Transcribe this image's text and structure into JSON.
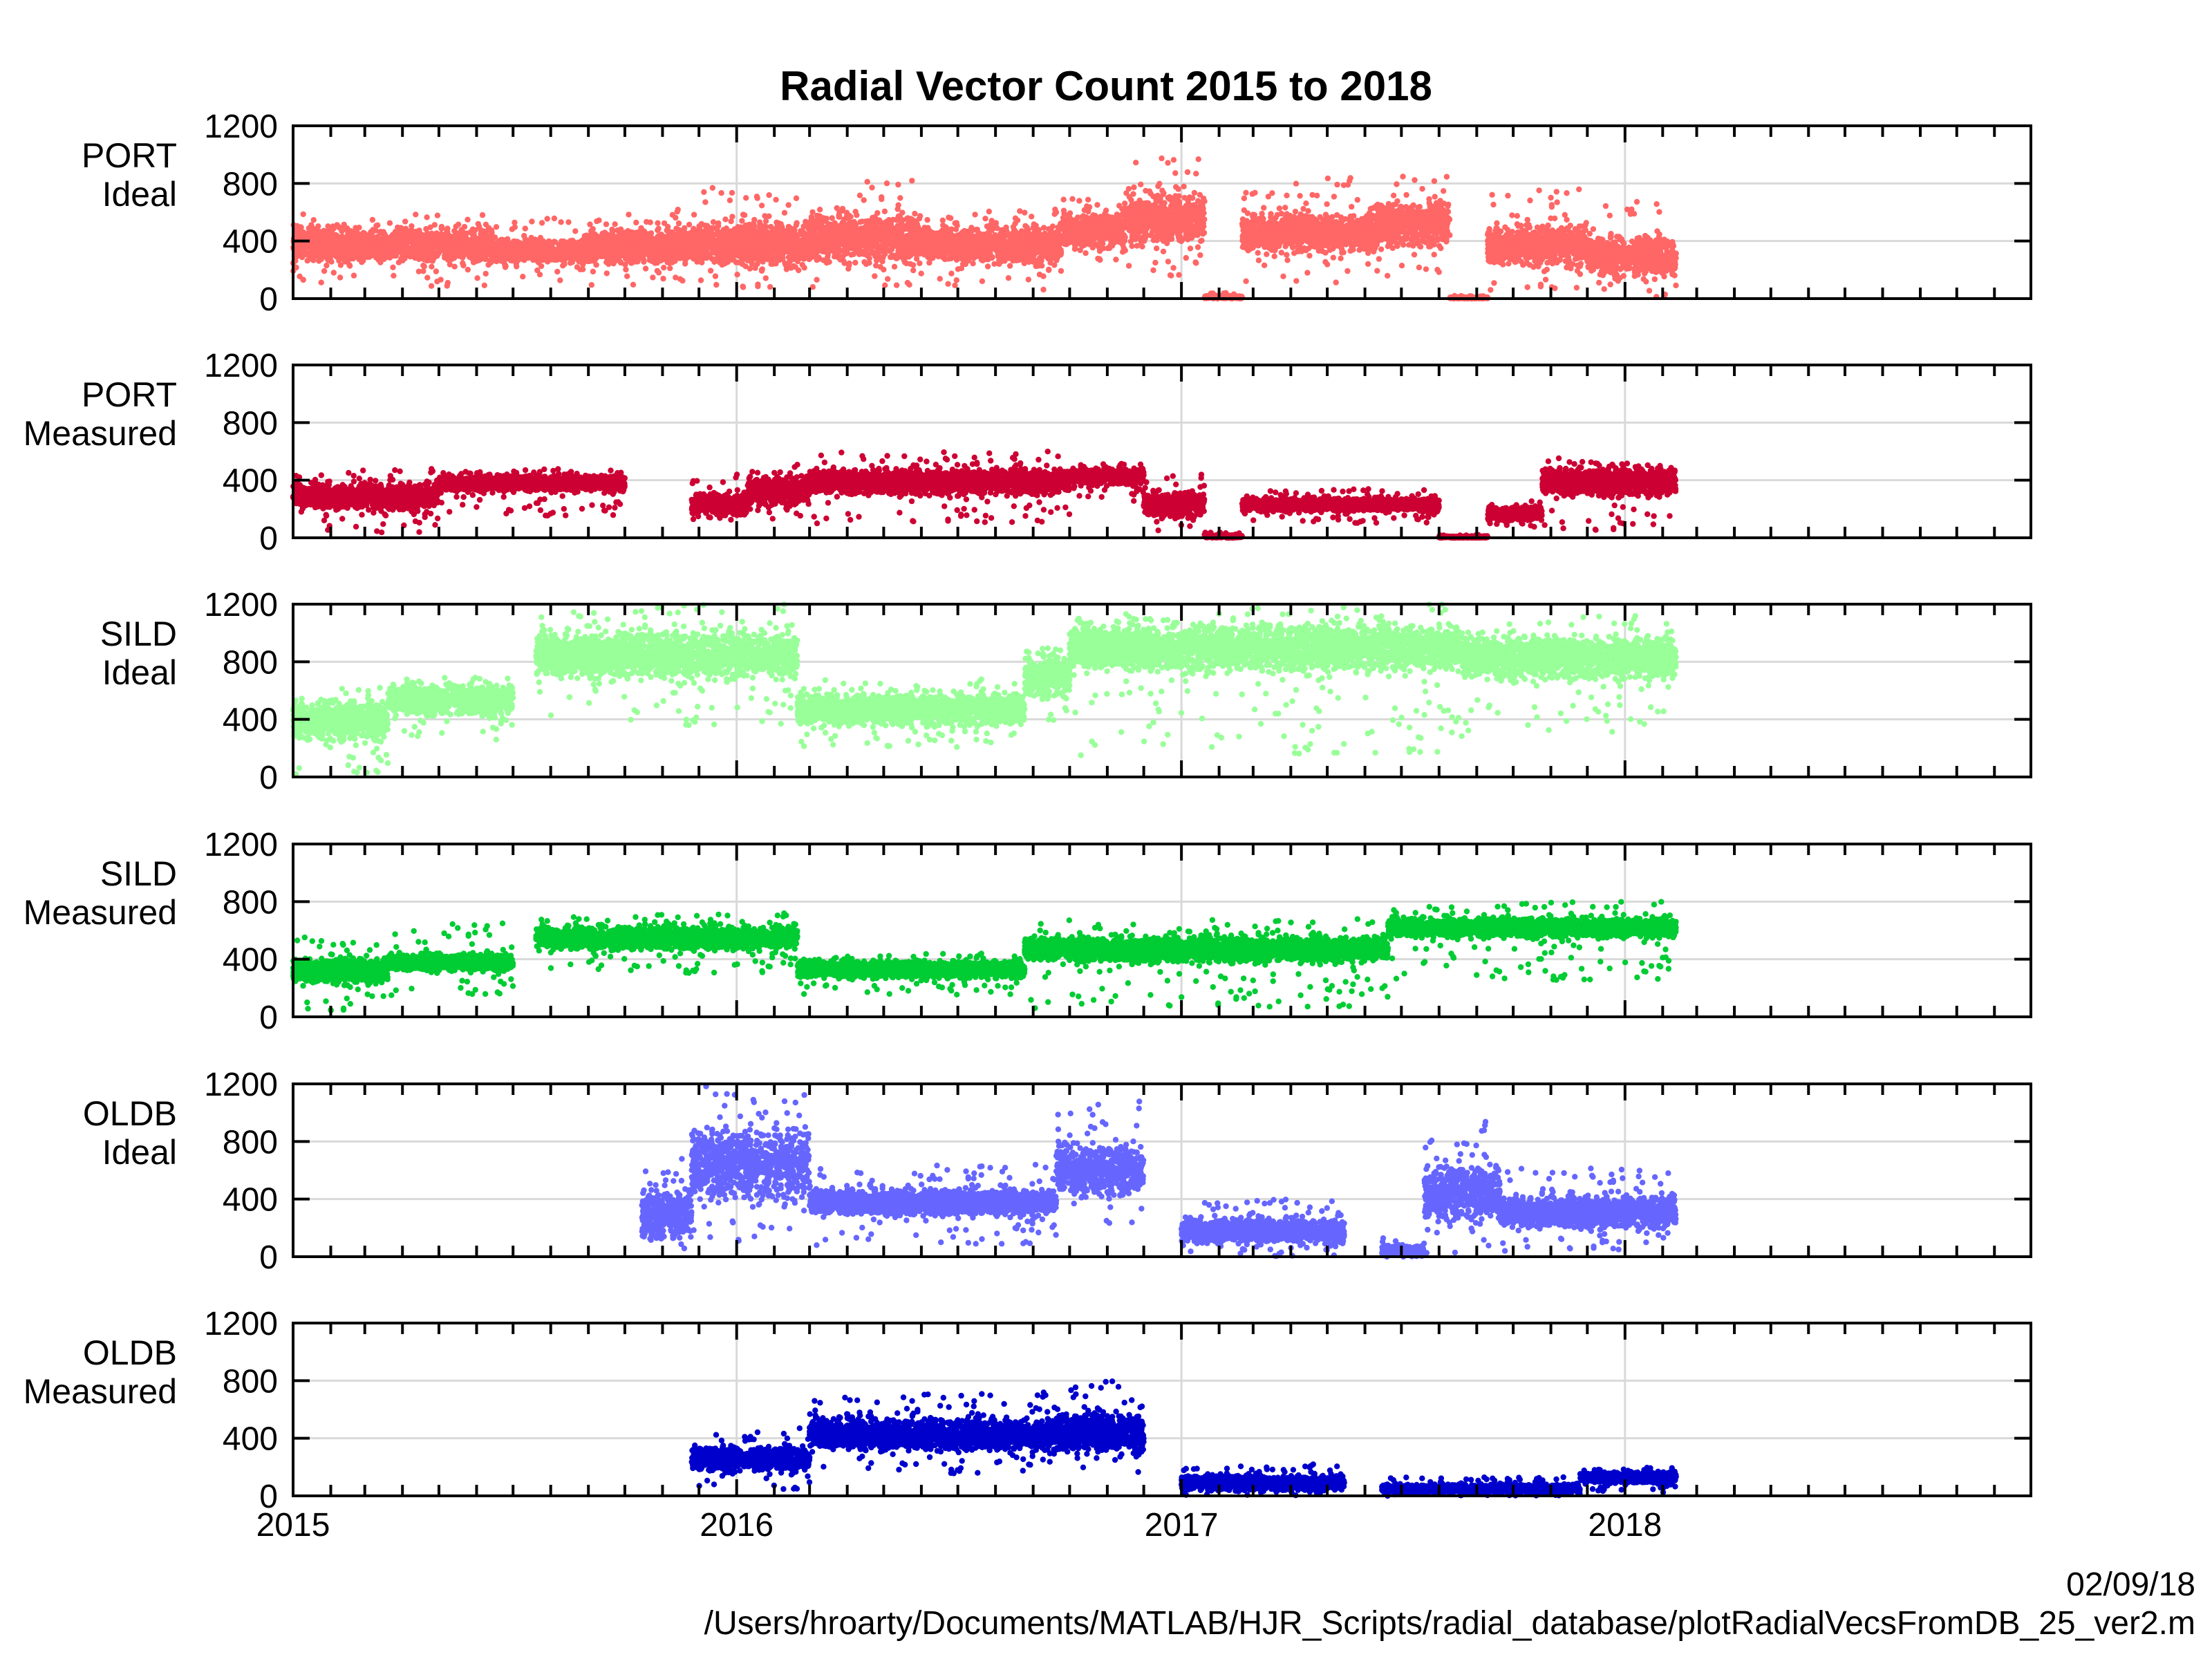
{
  "chart_data": {
    "type": "scatter",
    "title": "Radial Vector Count 2015 to 2018",
    "x_axis": {
      "range": [
        "2015-01-01",
        "2018-12-01"
      ],
      "tick_labels": [
        "2015",
        "2016",
        "2017",
        "2018"
      ]
    },
    "y_axis": {
      "range": [
        0,
        1200
      ],
      "tick_labels": [
        "0",
        "400",
        "800",
        "1200"
      ]
    },
    "grid": true,
    "legend": "none",
    "panels": [
      {
        "label_lines": [
          "PORT",
          "Ideal"
        ],
        "color": "#ff6666",
        "segments": [
          {
            "from": "2015-01-01",
            "to": "2015-02-15",
            "level": 380,
            "spread": 130,
            "lo": 100,
            "hi": 620
          },
          {
            "from": "2015-02-15",
            "to": "2015-06-15",
            "level": 370,
            "spread": 120,
            "lo": 80,
            "hi": 600
          },
          {
            "from": "2015-06-15",
            "to": "2015-09-01",
            "level": 330,
            "spread": 90,
            "lo": 120,
            "hi": 560
          },
          {
            "from": "2015-09-01",
            "to": "2015-12-01",
            "level": 370,
            "spread": 120,
            "lo": 80,
            "hi": 620
          },
          {
            "from": "2015-12-01",
            "to": "2016-03-01",
            "level": 380,
            "spread": 160,
            "lo": 60,
            "hi": 780
          },
          {
            "from": "2016-03-01",
            "to": "2016-06-01",
            "level": 420,
            "spread": 180,
            "lo": 80,
            "hi": 820
          },
          {
            "from": "2016-06-01",
            "to": "2016-09-25",
            "level": 380,
            "spread": 130,
            "lo": 50,
            "hi": 620
          },
          {
            "from": "2016-09-25",
            "to": "2016-11-15",
            "level": 470,
            "spread": 120,
            "lo": 250,
            "hi": 740
          },
          {
            "from": "2016-11-15",
            "to": "2017-01-20",
            "level": 560,
            "spread": 200,
            "lo": 150,
            "hi": 1000
          },
          {
            "from": "2017-01-20",
            "to": "2017-02-20",
            "level": 10,
            "spread": 10,
            "lo": 0,
            "hi": 40
          },
          {
            "from": "2017-02-20",
            "to": "2017-06-10",
            "level": 460,
            "spread": 140,
            "lo": 100,
            "hi": 840
          },
          {
            "from": "2017-06-10",
            "to": "2017-08-10",
            "level": 520,
            "spread": 160,
            "lo": 120,
            "hi": 900
          },
          {
            "from": "2017-08-10",
            "to": "2017-09-10",
            "level": 5,
            "spread": 5,
            "lo": 0,
            "hi": 20
          },
          {
            "from": "2017-09-10",
            "to": "2017-12-01",
            "level": 370,
            "spread": 140,
            "lo": 60,
            "hi": 760
          },
          {
            "from": "2017-12-01",
            "to": "2018-02-12",
            "level": 300,
            "spread": 150,
            "lo": 0,
            "hi": 720
          }
        ]
      },
      {
        "label_lines": [
          "PORT",
          "Measured"
        ],
        "color": "#cc0033",
        "segments": [
          {
            "from": "2015-01-01",
            "to": "2015-05-01",
            "level": 290,
            "spread": 90,
            "lo": 20,
            "hi": 480
          },
          {
            "from": "2015-05-01",
            "to": "2015-10-01",
            "level": 380,
            "spread": 60,
            "lo": 150,
            "hi": 480
          },
          {
            "from": "2015-11-25",
            "to": "2016-01-10",
            "level": 230,
            "spread": 80,
            "lo": 120,
            "hi": 440
          },
          {
            "from": "2016-01-10",
            "to": "2016-03-01",
            "level": 330,
            "spread": 100,
            "lo": 120,
            "hi": 520
          },
          {
            "from": "2016-03-01",
            "to": "2016-10-01",
            "level": 390,
            "spread": 90,
            "lo": 100,
            "hi": 600
          },
          {
            "from": "2016-10-01",
            "to": "2016-12-01",
            "level": 430,
            "spread": 60,
            "lo": 250,
            "hi": 520
          },
          {
            "from": "2016-12-01",
            "to": "2017-01-20",
            "level": 230,
            "spread": 90,
            "lo": 20,
            "hi": 440
          },
          {
            "from": "2017-01-20",
            "to": "2017-02-20",
            "level": 10,
            "spread": 10,
            "lo": 0,
            "hi": 40
          },
          {
            "from": "2017-02-20",
            "to": "2017-08-01",
            "level": 230,
            "spread": 50,
            "lo": 100,
            "hi": 340
          },
          {
            "from": "2017-08-01",
            "to": "2017-09-10",
            "level": 5,
            "spread": 5,
            "lo": 0,
            "hi": 20
          },
          {
            "from": "2017-09-10",
            "to": "2017-10-25",
            "level": 170,
            "spread": 50,
            "lo": 60,
            "hi": 260
          },
          {
            "from": "2017-10-25",
            "to": "2018-02-12",
            "level": 390,
            "spread": 100,
            "lo": 40,
            "hi": 560
          }
        ]
      },
      {
        "label_lines": [
          "SILD",
          "Ideal"
        ],
        "color": "#99ff99",
        "segments": [
          {
            "from": "2015-01-01",
            "to": "2015-03-20",
            "level": 390,
            "spread": 140,
            "lo": 20,
            "hi": 620
          },
          {
            "from": "2015-03-20",
            "to": "2015-07-01",
            "level": 540,
            "spread": 110,
            "lo": 250,
            "hi": 700
          },
          {
            "from": "2015-07-20",
            "to": "2016-02-20",
            "level": 850,
            "spread": 170,
            "lo": 350,
            "hi": 1200
          },
          {
            "from": "2016-02-20",
            "to": "2016-08-25",
            "level": 470,
            "spread": 110,
            "lo": 200,
            "hi": 680
          },
          {
            "from": "2016-08-25",
            "to": "2016-10-01",
            "level": 700,
            "spread": 150,
            "lo": 380,
            "hi": 900
          },
          {
            "from": "2016-10-01",
            "to": "2017-08-20",
            "level": 900,
            "spread": 170,
            "lo": 150,
            "hi": 1200
          },
          {
            "from": "2017-08-20",
            "to": "2018-02-12",
            "level": 830,
            "spread": 150,
            "lo": 300,
            "hi": 1120
          }
        ]
      },
      {
        "label_lines": [
          "SILD",
          "Measured"
        ],
        "color": "#00cc33",
        "segments": [
          {
            "from": "2015-01-01",
            "to": "2015-03-20",
            "level": 320,
            "spread": 90,
            "lo": 30,
            "hi": 560
          },
          {
            "from": "2015-03-20",
            "to": "2015-07-01",
            "level": 380,
            "spread": 60,
            "lo": 150,
            "hi": 650
          },
          {
            "from": "2015-07-20",
            "to": "2016-02-20",
            "level": 550,
            "spread": 80,
            "lo": 300,
            "hi": 720
          },
          {
            "from": "2016-02-20",
            "to": "2016-08-25",
            "level": 330,
            "spread": 60,
            "lo": 150,
            "hi": 440
          },
          {
            "from": "2016-08-25",
            "to": "2017-06-20",
            "level": 470,
            "spread": 90,
            "lo": 60,
            "hi": 680
          },
          {
            "from": "2017-06-20",
            "to": "2018-02-12",
            "level": 620,
            "spread": 70,
            "lo": 250,
            "hi": 800
          }
        ]
      },
      {
        "label_lines": [
          "OLDB",
          "Ideal"
        ],
        "color": "#6666ff",
        "segments": [
          {
            "from": "2015-10-15",
            "to": "2015-11-25",
            "level": 300,
            "spread": 170,
            "lo": 0,
            "hi": 700
          },
          {
            "from": "2015-11-25",
            "to": "2016-03-01",
            "level": 650,
            "spread": 260,
            "lo": 80,
            "hi": 1200
          },
          {
            "from": "2016-03-01",
            "to": "2016-09-20",
            "level": 380,
            "spread": 90,
            "lo": 80,
            "hi": 640
          },
          {
            "from": "2016-09-20",
            "to": "2016-12-01",
            "level": 600,
            "spread": 170,
            "lo": 200,
            "hi": 1080
          },
          {
            "from": "2017-01-01",
            "to": "2017-05-15",
            "level": 180,
            "spread": 90,
            "lo": 0,
            "hi": 400
          },
          {
            "from": "2017-06-15",
            "to": "2017-07-20",
            "level": 40,
            "spread": 40,
            "lo": 0,
            "hi": 150
          },
          {
            "from": "2017-07-20",
            "to": "2017-09-20",
            "level": 450,
            "spread": 190,
            "lo": 0,
            "hi": 940
          },
          {
            "from": "2017-09-20",
            "to": "2018-02-12",
            "level": 310,
            "spread": 110,
            "lo": 40,
            "hi": 620
          }
        ]
      },
      {
        "label_lines": [
          "OLDB",
          "Measured"
        ],
        "color": "#0000cc",
        "segments": [
          {
            "from": "2015-11-25",
            "to": "2016-03-01",
            "level": 260,
            "spread": 90,
            "lo": 40,
            "hi": 470
          },
          {
            "from": "2016-03-01",
            "to": "2016-09-20",
            "level": 430,
            "spread": 110,
            "lo": 150,
            "hi": 720
          },
          {
            "from": "2016-09-20",
            "to": "2016-12-01",
            "level": 440,
            "spread": 150,
            "lo": 150,
            "hi": 800
          },
          {
            "from": "2017-01-01",
            "to": "2017-05-15",
            "level": 90,
            "spread": 50,
            "lo": 0,
            "hi": 220
          },
          {
            "from": "2017-06-15",
            "to": "2017-11-25",
            "level": 50,
            "spread": 30,
            "lo": 0,
            "hi": 130
          },
          {
            "from": "2017-11-25",
            "to": "2018-02-12",
            "level": 130,
            "spread": 40,
            "lo": 20,
            "hi": 200
          }
        ]
      }
    ]
  },
  "footer": {
    "date": "02/09/18",
    "path": "/Users/hroarty/Documents/MATLAB/HJR_Scripts/radial_database/plotRadialVecsFromDB_25_ver2.m"
  }
}
